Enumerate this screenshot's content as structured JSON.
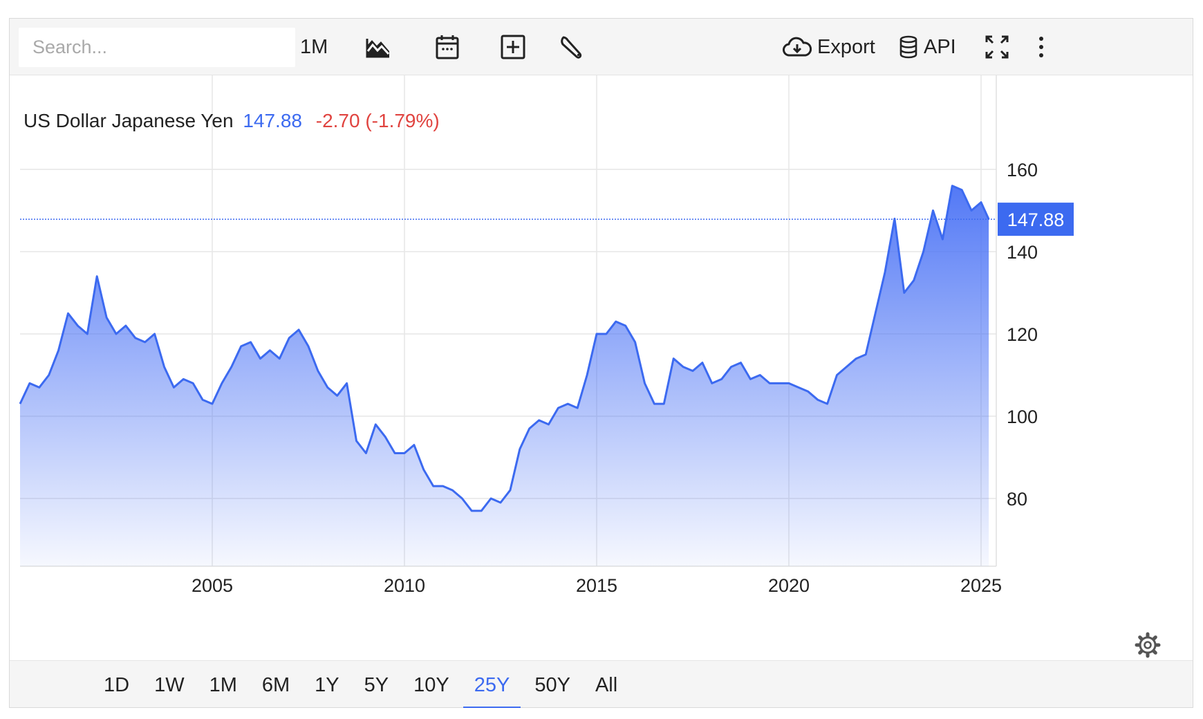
{
  "toolbar": {
    "search_placeholder": "Search...",
    "interval_label": "1M",
    "export_label": "Export",
    "api_label": "API",
    "icons": [
      "chart-type-icon",
      "calendar-icon",
      "add-icon",
      "wrench-icon",
      "cloud-download-icon",
      "database-icon",
      "fullscreen-icon",
      "more-icon"
    ]
  },
  "legend": {
    "name": "US Dollar Japanese Yen",
    "last": "147.88",
    "change": "-2.70 (-1.79%)"
  },
  "range_tabs": [
    "1D",
    "1W",
    "1M",
    "6M",
    "1Y",
    "5Y",
    "10Y",
    "25Y",
    "50Y",
    "All"
  ],
  "active_range": "25Y",
  "colors": {
    "line": "#3c6af0",
    "area_top": "#4a72f5",
    "change_negative": "#e0433f",
    "grid": "#e6e6e6"
  },
  "chart_data": {
    "type": "area",
    "series": [
      {
        "x": [
          2000.0,
          2000.25,
          2000.5,
          2000.75,
          2001.0,
          2001.25,
          2001.5,
          2001.75,
          2002.0,
          2002.25,
          2002.5,
          2002.75,
          2003.0,
          2003.25,
          2003.5,
          2003.75,
          2004.0,
          2004.25,
          2004.5,
          2004.75,
          2005.0,
          2005.25,
          2005.5,
          2005.75,
          2006.0,
          2006.25,
          2006.5,
          2006.75,
          2007.0,
          2007.25,
          2007.5,
          2007.75,
          2008.0,
          2008.25,
          2008.5,
          2008.75,
          2009.0,
          2009.25,
          2009.5,
          2009.75,
          2010.0,
          2010.25,
          2010.5,
          2010.75,
          2011.0,
          2011.25,
          2011.5,
          2011.75,
          2012.0,
          2012.25,
          2012.5,
          2012.75,
          2013.0,
          2013.25,
          2013.5,
          2013.75,
          2014.0,
          2014.25,
          2014.5,
          2014.75,
          2015.0,
          2015.25,
          2015.5,
          2015.75,
          2016.0,
          2016.25,
          2016.5,
          2016.75,
          2017.0,
          2017.25,
          2017.5,
          2017.75,
          2018.0,
          2018.25,
          2018.5,
          2018.75,
          2019.0,
          2019.25,
          2019.5,
          2019.75,
          2020.0,
          2020.25,
          2020.5,
          2020.75,
          2021.0,
          2021.25,
          2021.5,
          2021.75,
          2022.0,
          2022.25,
          2022.5,
          2022.75,
          2023.0,
          2023.25,
          2023.5,
          2023.75,
          2024.0,
          2024.25,
          2024.5,
          2024.75,
          2025.0,
          2025.2
        ],
        "y": [
          103,
          108,
          107,
          110,
          116,
          125,
          122,
          120,
          134,
          124,
          120,
          122,
          119,
          118,
          120,
          112,
          107,
          109,
          108,
          104,
          103,
          108,
          112,
          117,
          118,
          114,
          116,
          114,
          119,
          121,
          117,
          111,
          107,
          105,
          108,
          94,
          91,
          98,
          95,
          91,
          91,
          93,
          87,
          83,
          83,
          82,
          80,
          77,
          77,
          80,
          79,
          82,
          92,
          97,
          99,
          98,
          102,
          103,
          102,
          110,
          120,
          120,
          123,
          122,
          118,
          108,
          103,
          103,
          114,
          112,
          111,
          113,
          108,
          109,
          112,
          113,
          109,
          110,
          108,
          108,
          108,
          107,
          106,
          104,
          103,
          110,
          112,
          114,
          115,
          125,
          135,
          148,
          130,
          133,
          140,
          150,
          143,
          156,
          155,
          150,
          152,
          147.88
        ]
      }
    ],
    "xlim": [
      2000.0,
      2025.2
    ],
    "ylim": [
      60,
      178
    ],
    "x_ticks": [
      2005,
      2010,
      2015,
      2020,
      2025
    ],
    "x_tick_labels": [
      "2005",
      "2010",
      "2015",
      "2020",
      "2025"
    ],
    "y_ticks": [
      80,
      100,
      120,
      140,
      160
    ],
    "y_tick_labels": [
      "80",
      "100",
      "120",
      "140",
      "160"
    ],
    "last_value": 147.88,
    "last_value_label": "147.88",
    "grid": true,
    "legend": "top-left"
  }
}
